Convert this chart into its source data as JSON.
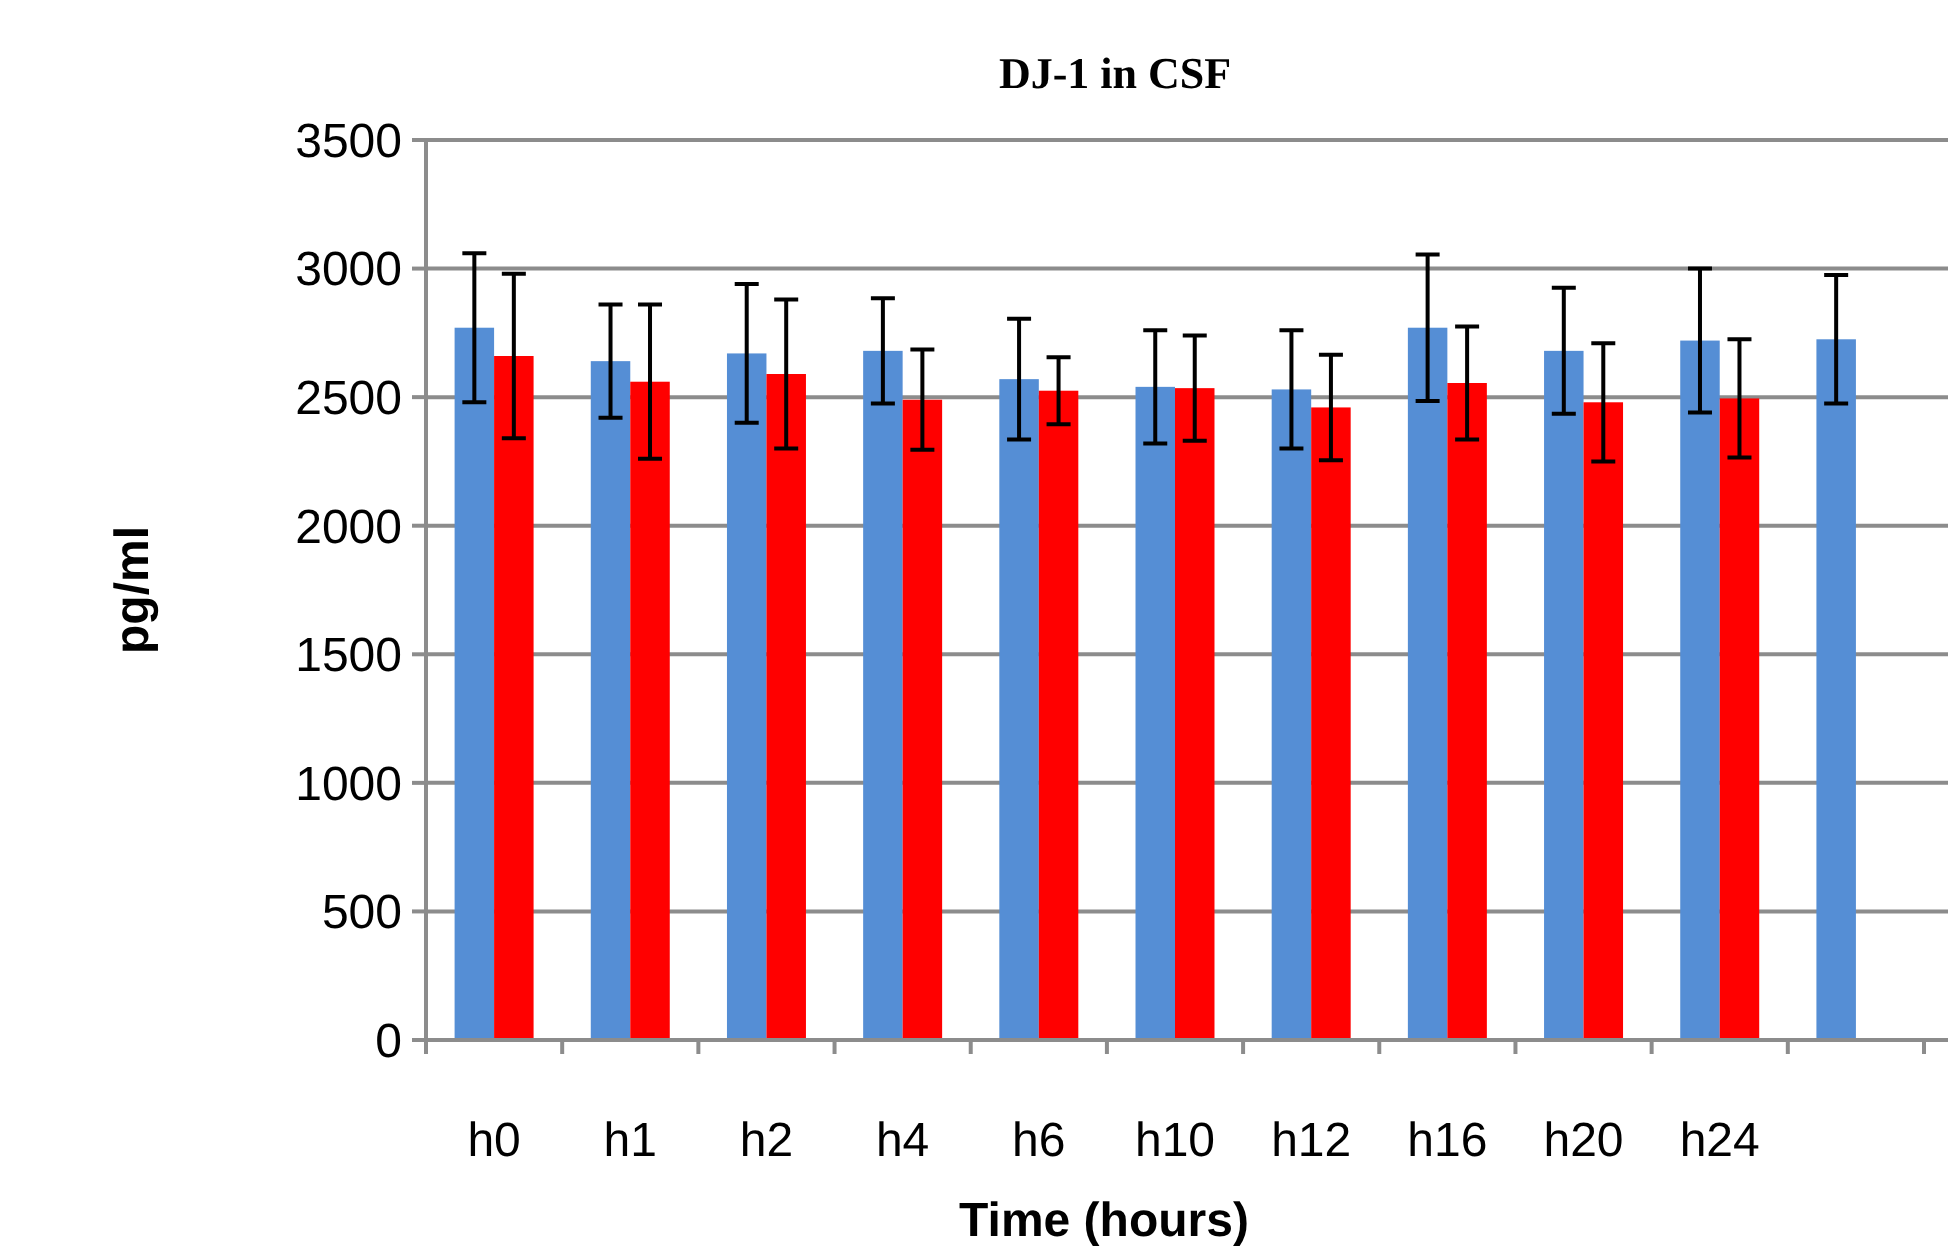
{
  "chart_data": {
    "type": "bar",
    "title": "DJ-1 in CSF",
    "xlabel": "Time (hours)",
    "ylabel": "pg/ml",
    "categories": [
      "h0",
      "h1",
      "h2",
      "h4",
      "h6",
      "h10",
      "h12",
      "h16",
      "h20",
      "h24",
      null
    ],
    "series": [
      {
        "color": "#558ed5",
        "values": [
          2770,
          2640,
          2670,
          2680,
          2570,
          2540,
          2530,
          2770,
          2680,
          2720,
          2725
        ],
        "errors": [
          290,
          220,
          270,
          205,
          235,
          220,
          230,
          285,
          245,
          280,
          250
        ]
      },
      {
        "color": "#ff0000",
        "values": [
          2660,
          2560,
          2590,
          2490,
          2525,
          2535,
          2460,
          2555,
          2480,
          2495,
          null
        ],
        "errors": [
          320,
          300,
          290,
          195,
          130,
          205,
          205,
          220,
          230,
          230,
          null
        ]
      }
    ],
    "ylim": [
      0,
      3500
    ],
    "yticks": [
      0,
      500,
      1000,
      1500,
      2000,
      2500,
      3000,
      3500
    ],
    "grid": "y"
  }
}
